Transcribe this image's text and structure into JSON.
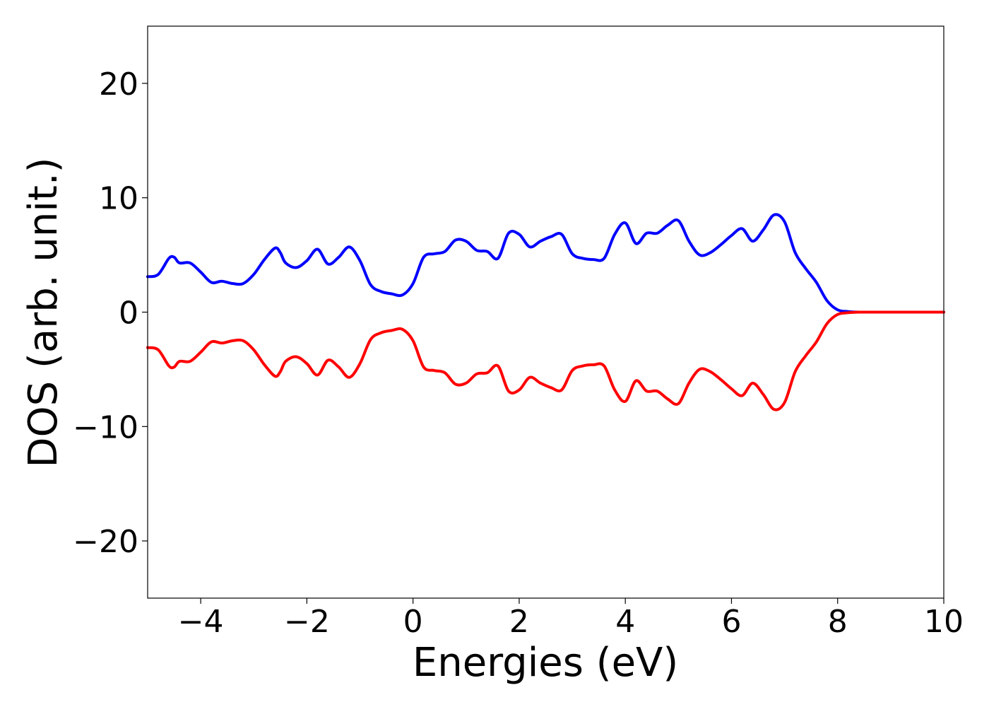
{
  "chart_data": {
    "type": "line",
    "title": "",
    "xlabel": "Energies (eV)",
    "ylabel": "DOS (arb. unit.)",
    "xlim": [
      -5,
      10
    ],
    "ylim": [
      -25,
      25
    ],
    "x_ticks": [
      -4,
      -2,
      0,
      2,
      4,
      6,
      8,
      10
    ],
    "x_tick_labels": [
      "−4",
      "−2",
      "0",
      "2",
      "4",
      "6",
      "8",
      "10"
    ],
    "y_ticks": [
      -20,
      -10,
      0,
      10,
      20
    ],
    "y_tick_labels": [
      "−20",
      "−10",
      "0",
      "10",
      "20"
    ],
    "grid": false,
    "legend": "none",
    "x": [
      -5.0,
      -4.8,
      -4.6,
      -4.5,
      -4.4,
      -4.2,
      -4.0,
      -3.8,
      -3.6,
      -3.4,
      -3.2,
      -3.0,
      -2.8,
      -2.6,
      -2.5,
      -2.4,
      -2.2,
      -2.0,
      -1.8,
      -1.6,
      -1.4,
      -1.2,
      -1.0,
      -0.8,
      -0.6,
      -0.4,
      -0.2,
      0.0,
      0.2,
      0.4,
      0.6,
      0.8,
      1.0,
      1.2,
      1.4,
      1.6,
      1.8,
      2.0,
      2.2,
      2.4,
      2.6,
      2.8,
      3.0,
      3.2,
      3.4,
      3.6,
      3.8,
      4.0,
      4.2,
      4.4,
      4.6,
      4.8,
      5.0,
      5.2,
      5.4,
      5.6,
      5.8,
      6.0,
      6.2,
      6.4,
      6.6,
      6.8,
      7.0,
      7.2,
      7.4,
      7.6,
      7.8,
      8.0,
      8.2,
      8.4,
      8.6,
      9.0,
      9.5,
      10.0
    ],
    "series": [
      {
        "color": "#0000ff",
        "values": [
          3.1,
          3.3,
          4.7,
          4.8,
          4.3,
          4.3,
          3.5,
          2.6,
          2.7,
          2.5,
          2.5,
          3.3,
          4.6,
          5.6,
          5.2,
          4.3,
          3.9,
          4.5,
          5.5,
          4.2,
          4.8,
          5.7,
          4.5,
          2.4,
          1.8,
          1.6,
          1.5,
          2.5,
          4.8,
          5.1,
          5.3,
          6.3,
          6.2,
          5.4,
          5.3,
          4.7,
          6.9,
          6.8,
          5.7,
          6.2,
          6.6,
          6.8,
          5.1,
          4.7,
          4.6,
          4.7,
          6.8,
          7.8,
          6.0,
          6.9,
          6.9,
          7.6,
          8.0,
          6.2,
          5.0,
          5.2,
          5.9,
          6.7,
          7.3,
          6.2,
          7.2,
          8.5,
          7.9,
          5.2,
          3.8,
          2.6,
          1.0,
          0.2,
          0.05,
          0,
          0,
          0,
          0,
          0
        ]
      },
      {
        "color": "#ff0000",
        "values": [
          -3.1,
          -3.3,
          -4.7,
          -4.8,
          -4.3,
          -4.3,
          -3.5,
          -2.6,
          -2.7,
          -2.5,
          -2.5,
          -3.3,
          -4.6,
          -5.6,
          -5.2,
          -4.3,
          -3.9,
          -4.5,
          -5.5,
          -4.2,
          -4.8,
          -5.7,
          -4.5,
          -2.4,
          -1.8,
          -1.6,
          -1.5,
          -2.5,
          -4.8,
          -5.1,
          -5.3,
          -6.3,
          -6.2,
          -5.4,
          -5.3,
          -4.7,
          -6.9,
          -6.8,
          -5.7,
          -6.2,
          -6.6,
          -6.8,
          -5.1,
          -4.7,
          -4.6,
          -4.7,
          -6.8,
          -7.8,
          -6.0,
          -6.9,
          -6.9,
          -7.6,
          -8.0,
          -6.2,
          -5.0,
          -5.2,
          -5.9,
          -6.7,
          -7.3,
          -6.2,
          -7.2,
          -8.5,
          -7.9,
          -5.2,
          -3.8,
          -2.6,
          -1.0,
          -0.2,
          -0.05,
          0,
          0,
          0,
          0,
          0
        ]
      }
    ]
  }
}
